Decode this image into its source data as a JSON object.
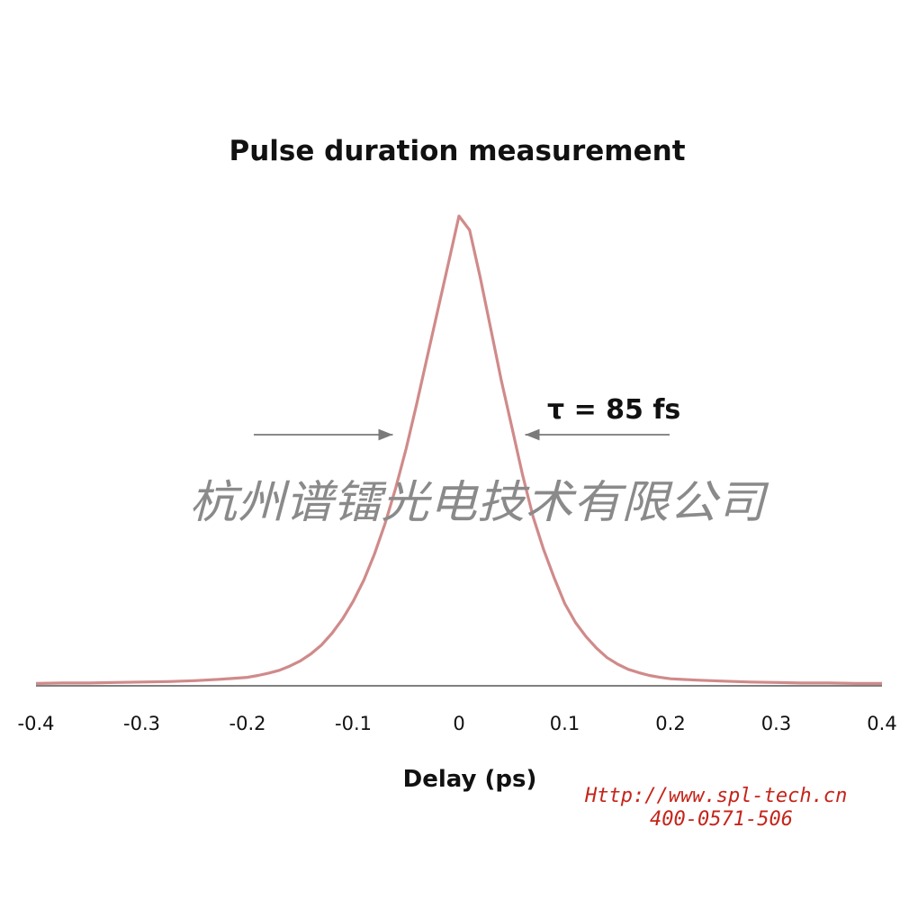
{
  "chart_data": {
    "type": "line",
    "title": "Pulse duration measurement",
    "xlabel": "Delay (ps)",
    "ylabel": "",
    "xlim": [
      -0.4,
      0.4
    ],
    "ylim": [
      0,
      1.05
    ],
    "x_ticks": [
      "-0.4",
      "-0.3",
      "-0.2",
      "-0.1",
      "0",
      "0.1",
      "0.2",
      "0.3",
      "0.4"
    ],
    "grid": false,
    "legend": "none",
    "series": [
      {
        "color": "#d08a8a",
        "x": [
          -0.4,
          -0.375,
          -0.35,
          -0.325,
          -0.3,
          -0.275,
          -0.25,
          -0.225,
          -0.2,
          -0.19,
          -0.18,
          -0.17,
          -0.16,
          -0.15,
          -0.14,
          -0.13,
          -0.12,
          -0.11,
          -0.1,
          -0.09,
          -0.08,
          -0.07,
          -0.06,
          -0.05,
          -0.04,
          -0.03,
          -0.02,
          -0.01,
          0,
          0.01,
          0.02,
          0.03,
          0.04,
          0.05,
          0.06,
          0.07,
          0.08,
          0.09,
          0.1,
          0.11,
          0.12,
          0.13,
          0.14,
          0.15,
          0.16,
          0.17,
          0.18,
          0.19,
          0.2,
          0.225,
          0.25,
          0.275,
          0.3,
          0.325,
          0.35,
          0.375,
          0.4
        ],
        "y": [
          0.005,
          0.006,
          0.006,
          0.007,
          0.008,
          0.009,
          0.011,
          0.014,
          0.018,
          0.022,
          0.027,
          0.033,
          0.042,
          0.053,
          0.068,
          0.087,
          0.112,
          0.143,
          0.18,
          0.225,
          0.28,
          0.345,
          0.42,
          0.505,
          0.6,
          0.7,
          0.8,
          0.9,
          1.0,
          0.97,
          0.87,
          0.76,
          0.65,
          0.55,
          0.45,
          0.36,
          0.29,
          0.23,
          0.175,
          0.135,
          0.105,
          0.08,
          0.06,
          0.046,
          0.035,
          0.028,
          0.022,
          0.018,
          0.015,
          0.012,
          0.01,
          0.008,
          0.007,
          0.006,
          0.006,
          0.005,
          0.005
        ]
      }
    ],
    "annotations": [
      {
        "text": "τ = 85 fs",
        "fwhm_left": -0.06,
        "fwhm_right": 0.06
      }
    ]
  },
  "watermark": {
    "company": "杭州谱镭光电技术有限公司",
    "url": "Http://www.spl-tech.cn",
    "phone": "400-0571-506"
  }
}
